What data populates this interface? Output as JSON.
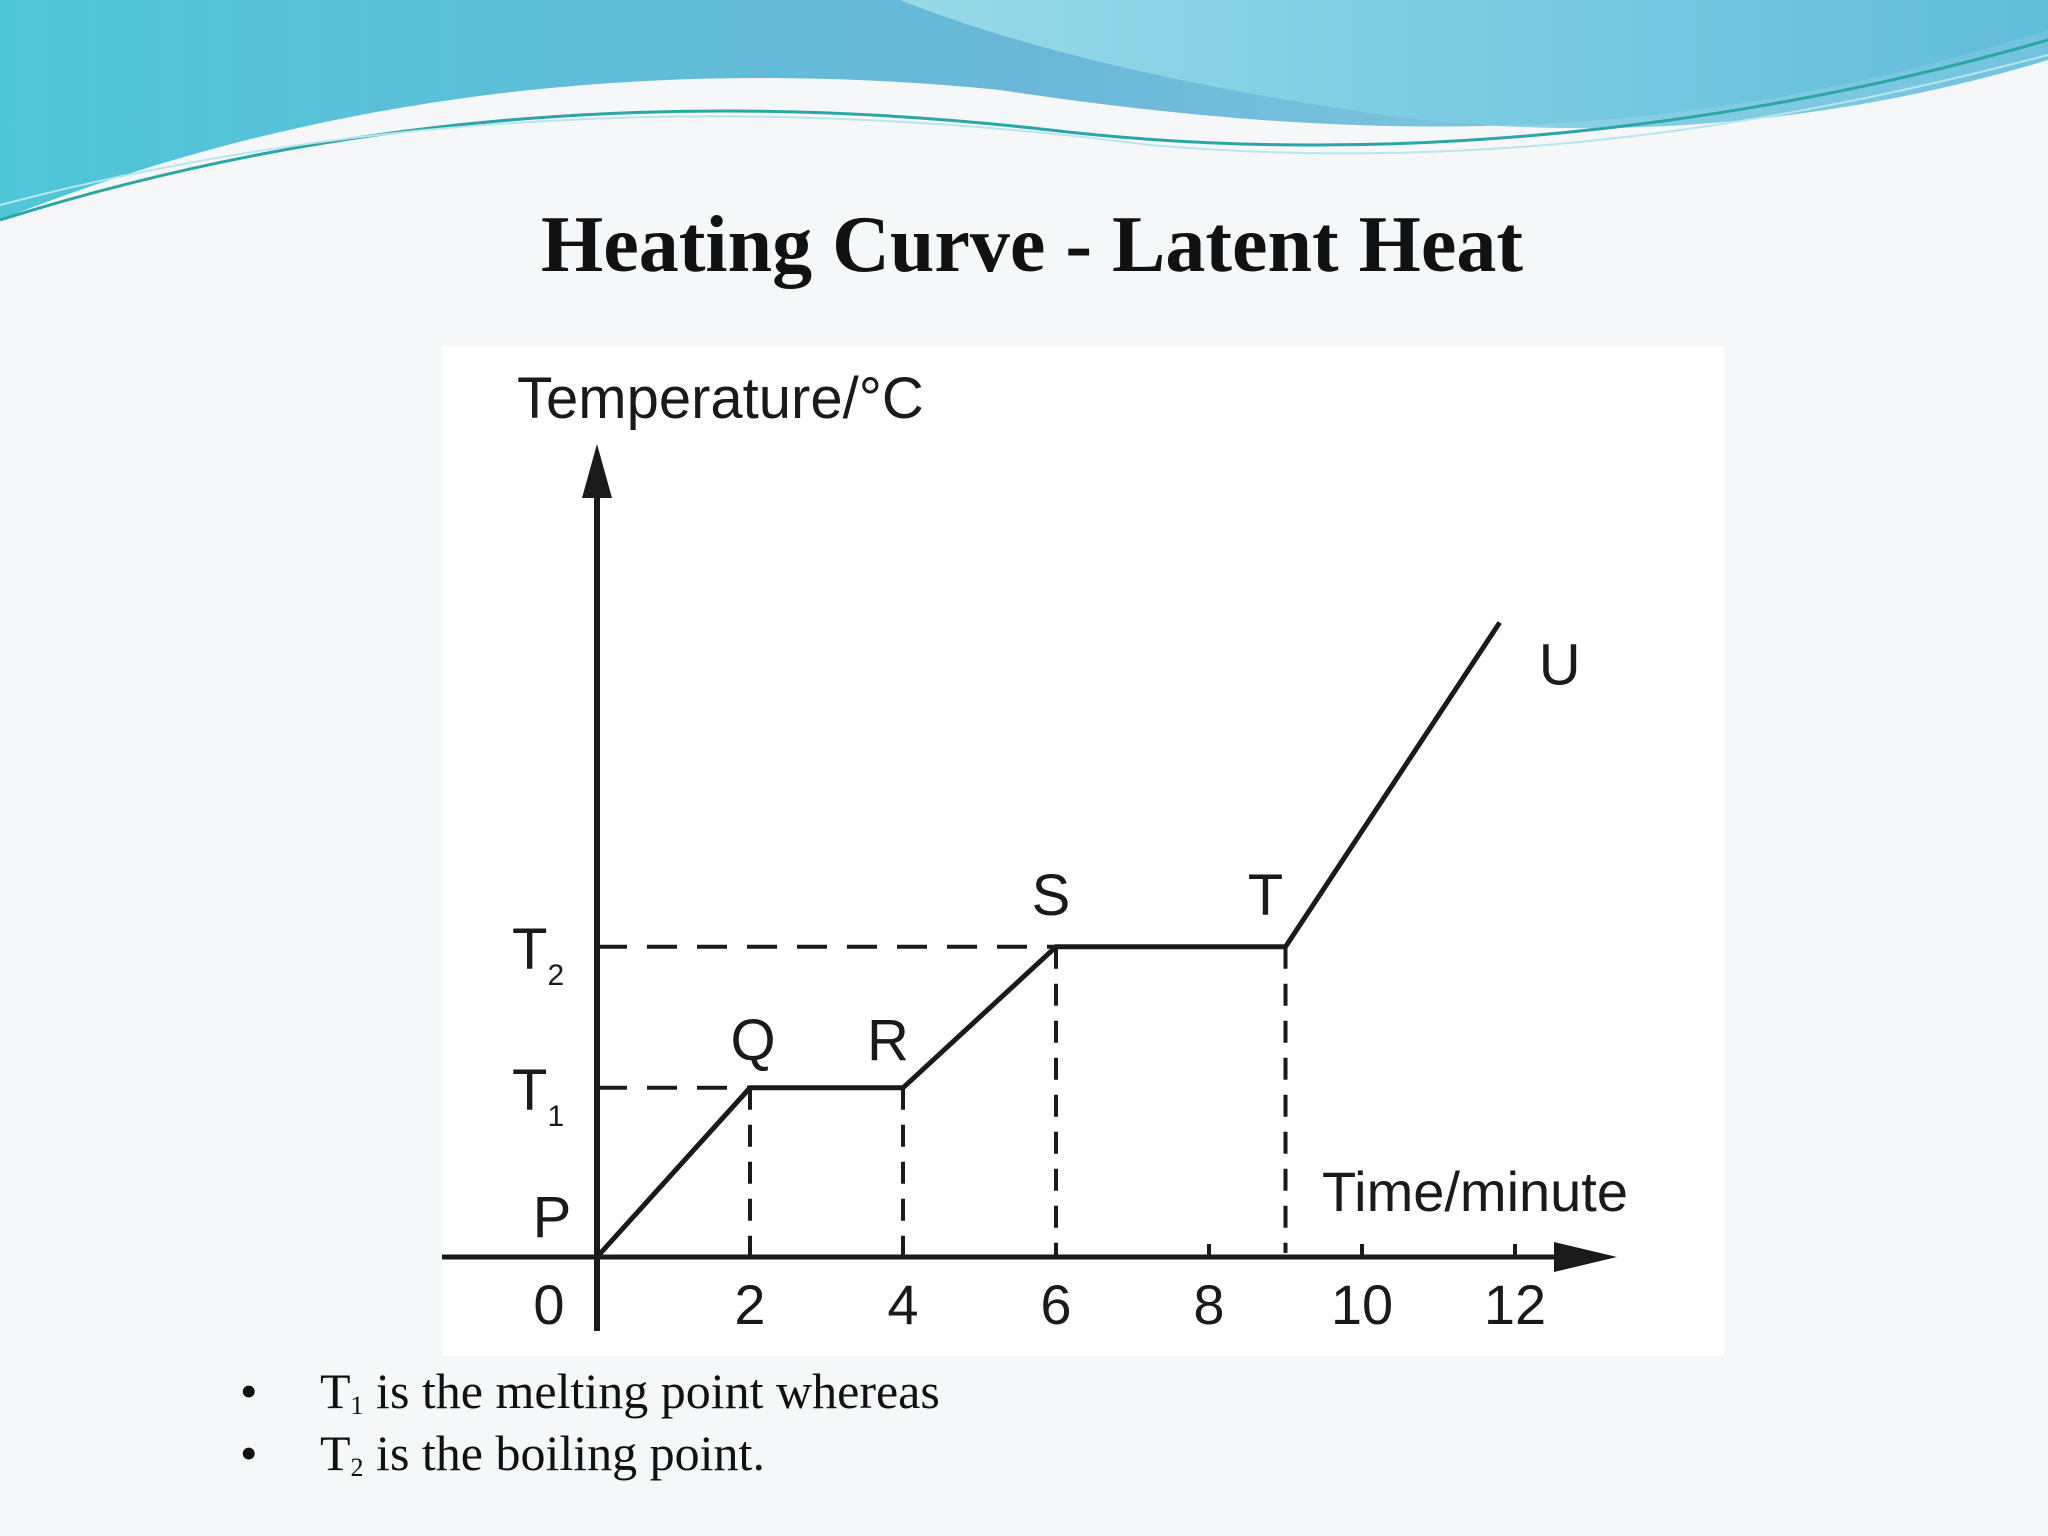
{
  "slide": {
    "title": "Heating Curve - Latent Heat",
    "bullets": [
      {
        "symbol": "T",
        "sub": "1",
        "text": " is the melting point whereas"
      },
      {
        "symbol": "T",
        "sub": "2",
        "text": " is the boiling point."
      }
    ]
  },
  "chart_data": {
    "type": "line",
    "title": "",
    "xlabel": "Time/minute",
    "ylabel": "Temperature/°C",
    "xlim": [
      0,
      12
    ],
    "xticks": [
      0,
      2,
      4,
      6,
      8,
      10,
      12
    ],
    "y_levels": [
      {
        "symbol": "T",
        "sub": "2",
        "value": 2.2
      },
      {
        "symbol": "T",
        "sub": "1",
        "value": 1.2
      }
    ],
    "series": [
      {
        "x": [
          0,
          2,
          4,
          6,
          9,
          11.8
        ],
        "y": [
          0,
          1.2,
          1.2,
          2.2,
          2.2,
          4.5
        ],
        "point_labels": [
          "P",
          "Q",
          "R",
          "S",
          "T",
          "U"
        ]
      }
    ],
    "guides": "dashed",
    "grid": false,
    "legend": "none"
  }
}
